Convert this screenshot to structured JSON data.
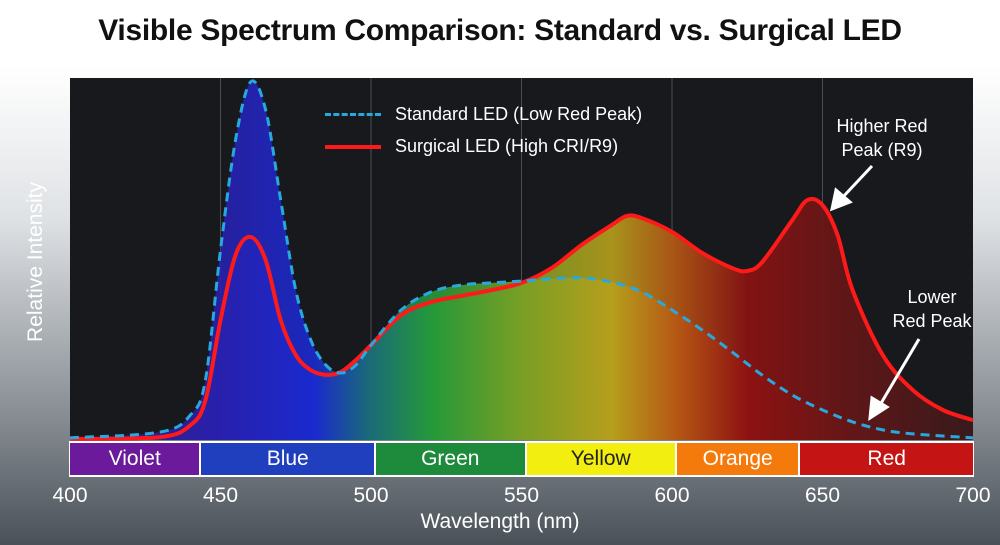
{
  "chart_data": {
    "type": "line",
    "title": "Visible Spectrum Comparison: Standard vs. Surgical LED",
    "xlabel": "Wavelength (nm)",
    "ylabel": "Relative Intensity",
    "xlim": [
      400,
      700
    ],
    "ylim": [
      0,
      100
    ],
    "x_ticks": [
      "400",
      "450",
      "500",
      "550",
      "600",
      "650",
      "700"
    ],
    "grid": "vertical",
    "legend_placement": "top-center",
    "series": [
      {
        "name": "Standard LED (Low Red Peak)",
        "style": "dashed",
        "color": "#29a8e0",
        "x": [
          400,
          430,
          440,
          445,
          450,
          455,
          460,
          465,
          470,
          475,
          480,
          485,
          490,
          495,
          500,
          510,
          520,
          530,
          540,
          550,
          560,
          570,
          580,
          590,
          600,
          610,
          620,
          630,
          640,
          650,
          660,
          670,
          680,
          700
        ],
        "y": [
          0.6,
          2.2,
          6.9,
          16.6,
          52.5,
          82.9,
          98.9,
          91.2,
          66.3,
          41.4,
          27.6,
          20.7,
          18.5,
          20.7,
          26.2,
          35.9,
          40.9,
          42.8,
          43.4,
          43.9,
          44.5,
          44.8,
          43.6,
          40.9,
          35.9,
          30.4,
          24.3,
          17.9,
          12.4,
          8.3,
          5.0,
          2.8,
          1.7,
          0.6
        ]
      },
      {
        "name": "Surgical LED (High CRI/R9)",
        "style": "solid",
        "color": "#ff1a1a",
        "x": [
          400,
          430,
          440,
          445,
          450,
          455,
          460,
          465,
          470,
          475,
          480,
          485,
          490,
          495,
          500,
          510,
          520,
          530,
          540,
          550,
          560,
          570,
          580,
          585,
          590,
          600,
          610,
          620,
          625,
          630,
          640,
          645,
          650,
          655,
          660,
          670,
          680,
          690,
          700
        ],
        "y": [
          0.3,
          0.8,
          4.1,
          11.0,
          33.1,
          51.1,
          56.1,
          49.7,
          33.1,
          23.5,
          19.3,
          18.0,
          18.8,
          22.1,
          26.2,
          34.5,
          38.1,
          39.8,
          41.4,
          43.4,
          47.5,
          53.9,
          59.4,
          61.9,
          61.3,
          57.5,
          51.7,
          47.5,
          46.7,
          49.2,
          60.8,
          66.3,
          64.9,
          56.6,
          41.4,
          23.5,
          13.8,
          8.3,
          5.5
        ]
      }
    ],
    "color_bands": [
      {
        "label": "Violet",
        "from": 400,
        "to": 443,
        "color": "#6a1a9a"
      },
      {
        "label": "Blue",
        "from": 443,
        "to": 501,
        "color": "#1f3fbf"
      },
      {
        "label": "Green",
        "from": 501,
        "to": 551,
        "color": "#1e8a3c"
      },
      {
        "label": "Yellow",
        "from": 551,
        "to": 601,
        "color": "#f2ee10"
      },
      {
        "label": "Orange",
        "from": 601,
        "to": 642,
        "color": "#f57a0c"
      },
      {
        "label": "Red",
        "from": 642,
        "to": 700,
        "color": "#c41414"
      }
    ],
    "annotations": [
      {
        "text_line1": "Higher Red",
        "text_line2": "Peak (R9)"
      },
      {
        "text_line1": "Lower",
        "text_line2": "Red Peak"
      }
    ]
  }
}
